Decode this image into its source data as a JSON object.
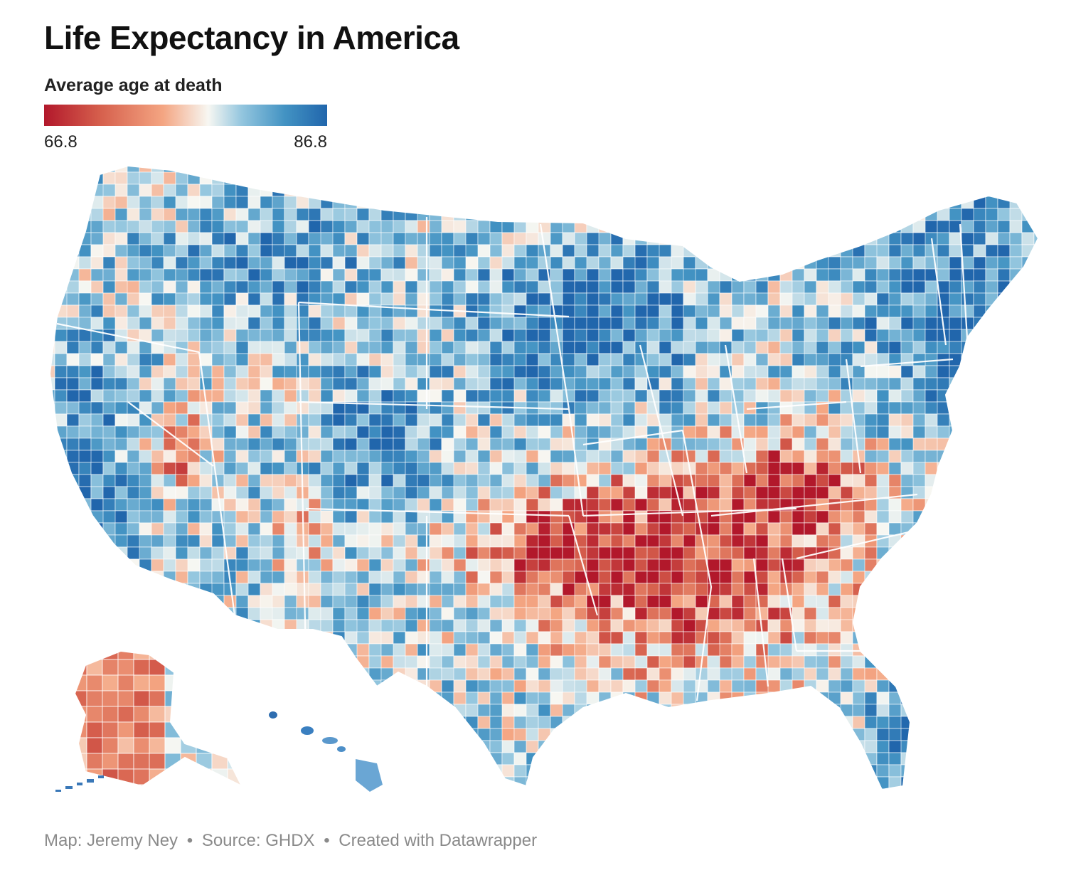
{
  "title": "Life Expectancy in America",
  "legend": {
    "title": "Average age at death",
    "min_label": "66.8",
    "max_label": "86.8",
    "min_value": 66.8,
    "max_value": 86.8,
    "color_stops": [
      "#b2182b",
      "#d6604d",
      "#f4a582",
      "#f7f7f2",
      "#92c5de",
      "#4393c3",
      "#2166ac"
    ]
  },
  "footer": {
    "map_credit": "Map: Jeremy Ney",
    "source": "Source: GHDX",
    "created_with": "Created with Datawrapper",
    "separator": "•"
  },
  "map": {
    "type": "choropleth",
    "geography": "US counties",
    "regional_pattern": {
      "low_values": [
        "south",
        "appalachia",
        "mississippi-delta",
        "alaska",
        "reservations"
      ],
      "high_values": [
        "northeast",
        "upper-midwest",
        "mountain-west",
        "california-coast",
        "florida",
        "hawaii"
      ]
    }
  }
}
